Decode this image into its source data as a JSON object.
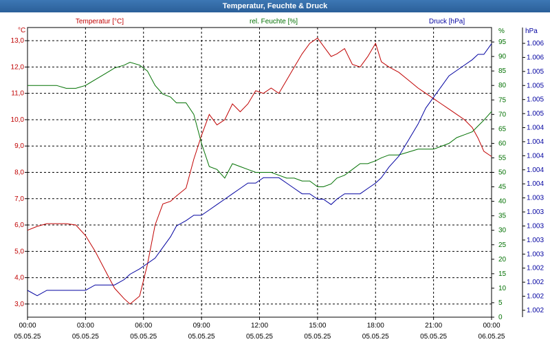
{
  "window": {
    "title": "Temperatur, Feuchte & Druck"
  },
  "chart_data": {
    "type": "line",
    "title": "Temperatur, Feuchte & Druck",
    "x_labels": [
      {
        "time": "00:00",
        "date": "05.05.25"
      },
      {
        "time": "03:00",
        "date": "05.05.25"
      },
      {
        "time": "06:00",
        "date": "05.05.25"
      },
      {
        "time": "09:00",
        "date": "05.05.25"
      },
      {
        "time": "12:00",
        "date": "05.05.25"
      },
      {
        "time": "15:00",
        "date": "05.05.25"
      },
      {
        "time": "18:00",
        "date": "05.05.25"
      },
      {
        "time": "21:00",
        "date": "05.05.25"
      },
      {
        "time": "00:00",
        "date": "06.05.25"
      }
    ],
    "x_range_hours": [
      0,
      24
    ],
    "axes": {
      "temperature": {
        "label": "Temperatur [°C]",
        "unit_label": "°C",
        "color": "#c00000",
        "range": [
          2.5,
          13.5
        ],
        "ticks": [
          "3,0",
          "4,0",
          "5,0",
          "6,0",
          "7,0",
          "8,0",
          "9,0",
          "10,0",
          "11,0",
          "12,0",
          "13,0"
        ],
        "tick_values": [
          3,
          4,
          5,
          6,
          7,
          8,
          9,
          10,
          11,
          12,
          13
        ]
      },
      "humidity": {
        "label": "rel. Feuchte [%]",
        "unit_label": "%",
        "color": "#007000",
        "range": [
          0,
          100
        ],
        "ticks": [
          "0",
          "5",
          "10",
          "15",
          "20",
          "25",
          "30",
          "35",
          "40",
          "45",
          "50",
          "55",
          "60",
          "65",
          "70",
          "75",
          "80",
          "85",
          "90",
          "95"
        ],
        "tick_values": [
          0,
          5,
          10,
          15,
          20,
          25,
          30,
          35,
          40,
          45,
          50,
          55,
          60,
          65,
          70,
          75,
          80,
          85,
          90,
          95
        ]
      },
      "pressure": {
        "label": "Druck [hPa]",
        "unit_label": "hPa",
        "color": "#0000a0",
        "ticks": [
          "1.002",
          "1.002",
          "1.002",
          "1.002",
          "1.003",
          "1.003",
          "1.003",
          "1.003",
          "1.003",
          "1.004",
          "1.004",
          "1.004",
          "1.004",
          "1.004",
          "1.005",
          "1.005",
          "1.005",
          "1.005",
          "1.006",
          "1.006"
        ]
      }
    },
    "grid": true,
    "series": [
      {
        "name": "Temperatur",
        "axis": "temperature",
        "color": "#c00000",
        "x": [
          0,
          0.5,
          1,
          1.5,
          2,
          2.5,
          3,
          3.5,
          4,
          4.5,
          5,
          5.3,
          5.8,
          6.2,
          6.6,
          7,
          7.4,
          7.7,
          8.2,
          8.6,
          9,
          9.4,
          9.8,
          10.2,
          10.6,
          11,
          11.4,
          11.8,
          12.2,
          12.6,
          13,
          13.4,
          13.8,
          14.2,
          14.6,
          15,
          15.3,
          15.7,
          16,
          16.4,
          16.8,
          17.2,
          17.6,
          18,
          18.3,
          18.7,
          19.2,
          19.7,
          20.2,
          20.6,
          21,
          21.4,
          21.8,
          22.2,
          22.6,
          23,
          23.3,
          23.6,
          24
        ],
        "values": [
          5.8,
          5.95,
          6.05,
          6.05,
          6.05,
          6.0,
          5.6,
          5.0,
          4.3,
          3.6,
          3.2,
          3.0,
          3.3,
          4.5,
          6.0,
          6.8,
          6.9,
          7.1,
          7.4,
          8.5,
          9.4,
          10.2,
          9.8,
          10.0,
          10.6,
          10.3,
          10.6,
          11.1,
          11.0,
          11.2,
          11.0,
          11.5,
          12.0,
          12.5,
          12.9,
          13.1,
          12.8,
          12.4,
          12.5,
          12.7,
          12.1,
          12.0,
          12.4,
          12.9,
          12.2,
          12.0,
          11.8,
          11.5,
          11.2,
          11.0,
          10.8,
          10.6,
          10.4,
          10.2,
          10.0,
          9.7,
          9.3,
          8.8,
          8.6
        ]
      },
      {
        "name": "rel. Feuchte",
        "axis": "humidity",
        "color": "#007000",
        "x": [
          0,
          0.5,
          1,
          1.5,
          2,
          2.5,
          3,
          3.5,
          4,
          4.5,
          5,
          5.3,
          5.8,
          6.2,
          6.6,
          7,
          7.4,
          7.7,
          8.2,
          8.6,
          9,
          9.4,
          9.8,
          10.2,
          10.6,
          11,
          11.4,
          11.8,
          12.2,
          12.6,
          13,
          13.4,
          13.8,
          14.2,
          14.6,
          15,
          15.3,
          15.7,
          16,
          16.4,
          16.8,
          17.2,
          17.6,
          18,
          18.3,
          18.7,
          19.2,
          19.7,
          20.2,
          20.6,
          21,
          21.4,
          21.8,
          22.2,
          22.6,
          23,
          23.3,
          23.6,
          24
        ],
        "values": [
          80,
          80,
          80,
          80,
          79,
          79,
          80,
          82,
          84,
          86,
          87,
          88,
          87,
          85,
          80,
          77,
          76,
          74,
          74,
          70,
          60,
          52,
          51,
          48,
          53,
          52,
          51,
          50,
          50,
          50,
          49,
          48,
          48,
          47,
          47,
          45,
          45,
          46,
          48,
          49,
          51,
          53,
          53,
          54,
          55,
          56,
          56,
          57,
          58,
          58,
          58,
          59,
          60,
          62,
          63,
          64,
          66,
          68,
          71
        ]
      },
      {
        "name": "Druck",
        "axis": "pressure",
        "color": "#0000a0",
        "x": [
          0,
          0.5,
          1,
          1.5,
          2,
          2.5,
          3,
          3.5,
          4,
          4.5,
          5,
          5.3,
          5.8,
          6.2,
          6.6,
          7,
          7.4,
          7.7,
          8.2,
          8.6,
          9,
          9.4,
          9.8,
          10.2,
          10.6,
          11,
          11.4,
          11.8,
          12.2,
          12.6,
          13,
          13.4,
          13.8,
          14.2,
          14.6,
          15,
          15.3,
          15.7,
          16,
          16.4,
          16.8,
          17.2,
          17.6,
          18,
          18.3,
          18.7,
          19.2,
          19.7,
          20.2,
          20.6,
          21,
          21.4,
          21.8,
          22.2,
          22.6,
          23,
          23.3,
          23.6,
          24
        ],
        "values": [
          1.0017,
          1.0016,
          1.0017,
          1.0017,
          1.0017,
          1.0017,
          1.0017,
          1.0018,
          1.0018,
          1.0018,
          1.0019,
          1.002,
          1.0021,
          1.0022,
          1.0023,
          1.0025,
          1.0027,
          1.0029,
          1.003,
          1.0031,
          1.0031,
          1.0032,
          1.0033,
          1.0034,
          1.0035,
          1.0036,
          1.0037,
          1.0037,
          1.0038,
          1.0038,
          1.0038,
          1.0037,
          1.0036,
          1.0035,
          1.0035,
          1.0034,
          1.0034,
          1.0033,
          1.0034,
          1.0035,
          1.0035,
          1.0035,
          1.0036,
          1.0037,
          1.0038,
          1.004,
          1.0042,
          1.0045,
          1.0048,
          1.0051,
          1.0053,
          1.0055,
          1.0057,
          1.0058,
          1.0059,
          1.006,
          1.0061,
          1.0061,
          1.0063
        ]
      }
    ]
  }
}
